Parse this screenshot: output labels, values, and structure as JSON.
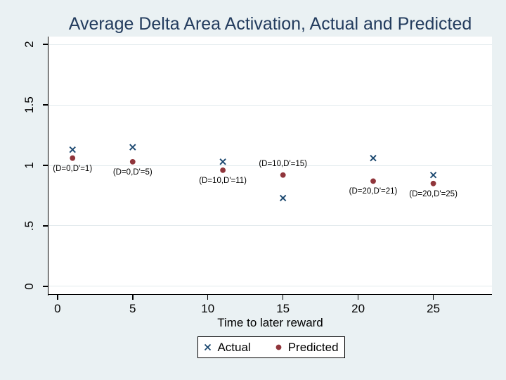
{
  "colors": {
    "background": "#eaf1f3",
    "plot_background": "#ffffff",
    "gridline": "#e2eaed",
    "axis": "#000000",
    "title_text": "#233c5e",
    "actual_marker": "#1a476f",
    "predicted_marker": "#90353b",
    "label_text": "#000000"
  },
  "chart_data": {
    "type": "scatter",
    "title": "Average Delta Area Activation, Actual and Predicted",
    "xlabel": "Time to later reward",
    "ylabel": "",
    "xlim": [
      -0.6,
      28.9
    ],
    "ylim": [
      -0.064,
      2.064
    ],
    "x_ticks": [
      0,
      5,
      10,
      15,
      20,
      25
    ],
    "x_tick_labels": [
      "0",
      "5",
      "10",
      "15",
      "20",
      "25"
    ],
    "y_ticks": [
      0,
      0.5,
      1,
      1.5,
      2
    ],
    "y_tick_labels": [
      "0",
      ".5",
      "1",
      "1.5",
      "2"
    ],
    "grid": "horizontal-only",
    "legend_position": "below-center",
    "series": [
      {
        "name": "Actual",
        "marker": "x",
        "color": "#1a476f",
        "points": [
          {
            "x": 1,
            "y": 1.13
          },
          {
            "x": 5,
            "y": 1.15
          },
          {
            "x": 11,
            "y": 1.03
          },
          {
            "x": 15,
            "y": 0.73
          },
          {
            "x": 21,
            "y": 1.06
          },
          {
            "x": 25,
            "y": 0.92
          }
        ]
      },
      {
        "name": "Predicted",
        "marker": "circle",
        "color": "#90353b",
        "points": [
          {
            "x": 1,
            "y": 1.06
          },
          {
            "x": 5,
            "y": 1.03
          },
          {
            "x": 11,
            "y": 0.96
          },
          {
            "x": 15,
            "y": 0.92
          },
          {
            "x": 21,
            "y": 0.87
          },
          {
            "x": 25,
            "y": 0.85
          }
        ]
      }
    ],
    "annotations": [
      {
        "text": "(D=0,D'=1)",
        "x": 1,
        "y": 1.06,
        "side": "below"
      },
      {
        "text": "(D=0,D'=5)",
        "x": 5,
        "y": 1.03,
        "side": "below"
      },
      {
        "text": "(D=10,D'=11)",
        "x": 11,
        "y": 0.96,
        "side": "below"
      },
      {
        "text": "(D=10,D'=15)",
        "x": 15,
        "y": 0.92,
        "side": "above"
      },
      {
        "text": "(D=20,D'=21)",
        "x": 21,
        "y": 0.87,
        "side": "below"
      },
      {
        "text": "(D=20,D'=25)",
        "x": 25,
        "y": 0.85,
        "side": "below"
      }
    ],
    "legend": {
      "entries": [
        {
          "marker": "x",
          "label": "Actual"
        },
        {
          "marker": "circle",
          "label": "Predicted"
        }
      ]
    }
  }
}
